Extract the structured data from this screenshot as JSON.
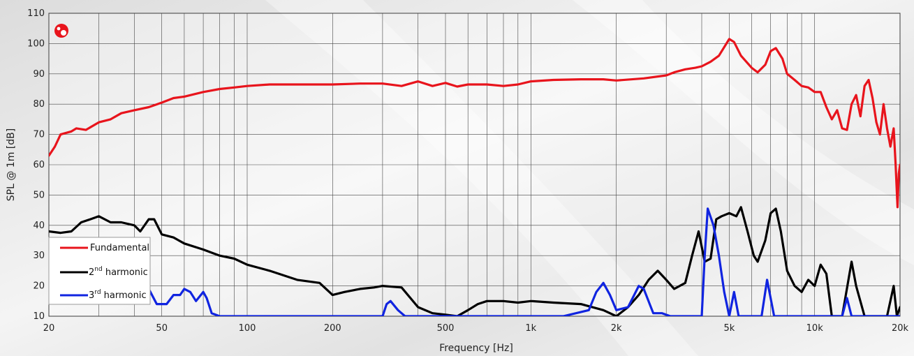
{
  "chart_data": {
    "type": "line",
    "title": "",
    "xlabel": "Frequency [Hz]",
    "ylabel": "SPL @ 1m [dB]",
    "xscale": "log",
    "xlim": [
      20,
      20000
    ],
    "ylim": [
      10,
      110
    ],
    "grid": true,
    "legend_position": "bottom-left",
    "x_ticks": [
      {
        "value": 20,
        "label": "20"
      },
      {
        "value": 50,
        "label": "50"
      },
      {
        "value": 100,
        "label": "100"
      },
      {
        "value": 200,
        "label": "200"
      },
      {
        "value": 500,
        "label": "500"
      },
      {
        "value": 1000,
        "label": "1k"
      },
      {
        "value": 2000,
        "label": "2k"
      },
      {
        "value": 5000,
        "label": "5k"
      },
      {
        "value": 10000,
        "label": "10k"
      },
      {
        "value": 20000,
        "label": "20k"
      }
    ],
    "y_ticks": [
      10,
      20,
      30,
      40,
      50,
      60,
      70,
      80,
      90,
      100,
      110
    ],
    "series": [
      {
        "name": "Fundamental",
        "color": "#e8141c",
        "points": [
          [
            20,
            63
          ],
          [
            21,
            66
          ],
          [
            22,
            70
          ],
          [
            24,
            71
          ],
          [
            25,
            72
          ],
          [
            27,
            71.5
          ],
          [
            30,
            74
          ],
          [
            33,
            75
          ],
          [
            36,
            77
          ],
          [
            40,
            78
          ],
          [
            45,
            79
          ],
          [
            50,
            80.5
          ],
          [
            55,
            82
          ],
          [
            60,
            82.5
          ],
          [
            70,
            84
          ],
          [
            80,
            85
          ],
          [
            90,
            85.5
          ],
          [
            100,
            86
          ],
          [
            120,
            86.5
          ],
          [
            150,
            86.5
          ],
          [
            200,
            86.5
          ],
          [
            250,
            86.8
          ],
          [
            300,
            86.8
          ],
          [
            350,
            86
          ],
          [
            400,
            87.5
          ],
          [
            450,
            86
          ],
          [
            500,
            87
          ],
          [
            550,
            85.8
          ],
          [
            600,
            86.5
          ],
          [
            700,
            86.5
          ],
          [
            800,
            86
          ],
          [
            900,
            86.5
          ],
          [
            1000,
            87.5
          ],
          [
            1200,
            88
          ],
          [
            1500,
            88.2
          ],
          [
            1800,
            88.2
          ],
          [
            2000,
            87.8
          ],
          [
            2500,
            88.5
          ],
          [
            3000,
            89.5
          ],
          [
            3200,
            90.5
          ],
          [
            3500,
            91.5
          ],
          [
            3800,
            92
          ],
          [
            4000,
            92.5
          ],
          [
            4300,
            94
          ],
          [
            4600,
            96
          ],
          [
            5000,
            101.5
          ],
          [
            5200,
            100.5
          ],
          [
            5500,
            96
          ],
          [
            6000,
            92
          ],
          [
            6300,
            90.5
          ],
          [
            6700,
            93
          ],
          [
            7000,
            97.5
          ],
          [
            7300,
            98.5
          ],
          [
            7700,
            95
          ],
          [
            8000,
            90
          ],
          [
            8500,
            88
          ],
          [
            9000,
            86
          ],
          [
            9500,
            85.5
          ],
          [
            10000,
            84
          ],
          [
            10500,
            84
          ],
          [
            11000,
            79
          ],
          [
            11500,
            75
          ],
          [
            12000,
            78
          ],
          [
            12500,
            72
          ],
          [
            13000,
            71.5
          ],
          [
            13500,
            80
          ],
          [
            14000,
            83
          ],
          [
            14500,
            76
          ],
          [
            15000,
            86
          ],
          [
            15500,
            88
          ],
          [
            16000,
            82
          ],
          [
            16500,
            74
          ],
          [
            17000,
            70
          ],
          [
            17500,
            80
          ],
          [
            18000,
            72
          ],
          [
            18500,
            66
          ],
          [
            19000,
            72
          ],
          [
            19300,
            60
          ],
          [
            19600,
            46
          ],
          [
            19800,
            57
          ],
          [
            20000,
            60
          ]
        ]
      },
      {
        "name": "2nd harmonic",
        "color": "#000000",
        "points": [
          [
            20,
            38
          ],
          [
            22,
            37.5
          ],
          [
            24,
            38
          ],
          [
            26,
            41
          ],
          [
            28,
            42
          ],
          [
            30,
            43
          ],
          [
            33,
            41
          ],
          [
            36,
            41
          ],
          [
            40,
            40
          ],
          [
            42,
            38
          ],
          [
            45,
            42
          ],
          [
            47,
            42
          ],
          [
            50,
            37
          ],
          [
            55,
            36
          ],
          [
            60,
            34
          ],
          [
            70,
            32
          ],
          [
            80,
            30
          ],
          [
            90,
            29
          ],
          [
            100,
            27
          ],
          [
            120,
            25
          ],
          [
            150,
            22
          ],
          [
            180,
            21
          ],
          [
            200,
            17
          ],
          [
            220,
            18
          ],
          [
            250,
            19
          ],
          [
            280,
            19.5
          ],
          [
            300,
            20
          ],
          [
            350,
            19.5
          ],
          [
            400,
            13
          ],
          [
            450,
            11
          ],
          [
            500,
            10.5
          ],
          [
            550,
            10
          ],
          [
            600,
            12
          ],
          [
            650,
            14
          ],
          [
            700,
            15
          ],
          [
            800,
            15
          ],
          [
            900,
            14.5
          ],
          [
            1000,
            15
          ],
          [
            1200,
            14.5
          ],
          [
            1500,
            14
          ],
          [
            1800,
            12
          ],
          [
            2000,
            10
          ],
          [
            2200,
            13
          ],
          [
            2400,
            17
          ],
          [
            2600,
            22
          ],
          [
            2800,
            25
          ],
          [
            3000,
            22
          ],
          [
            3200,
            19
          ],
          [
            3500,
            21
          ],
          [
            3700,
            30
          ],
          [
            3900,
            38
          ],
          [
            4100,
            28
          ],
          [
            4300,
            29
          ],
          [
            4500,
            42
          ],
          [
            4700,
            43
          ],
          [
            5000,
            44
          ],
          [
            5300,
            43
          ],
          [
            5500,
            46
          ],
          [
            5800,
            38
          ],
          [
            6100,
            30
          ],
          [
            6300,
            28
          ],
          [
            6700,
            35
          ],
          [
            7000,
            44
          ],
          [
            7300,
            45.5
          ],
          [
            7600,
            38
          ],
          [
            8000,
            25
          ],
          [
            8500,
            20
          ],
          [
            9000,
            18
          ],
          [
            9500,
            22
          ],
          [
            10000,
            20
          ],
          [
            10500,
            27
          ],
          [
            11000,
            24
          ],
          [
            11500,
            10
          ],
          [
            12500,
            10
          ],
          [
            13500,
            28
          ],
          [
            14000,
            20
          ],
          [
            15000,
            10
          ],
          [
            18000,
            10
          ],
          [
            19000,
            20
          ],
          [
            19500,
            10
          ],
          [
            20000,
            13
          ]
        ]
      },
      {
        "name": "3rd harmonic",
        "color": "#1024e0",
        "points": [
          [
            20,
            27
          ],
          [
            22,
            25
          ],
          [
            25,
            21
          ],
          [
            28,
            20
          ],
          [
            30,
            19
          ],
          [
            33,
            19
          ],
          [
            36,
            20
          ],
          [
            40,
            21
          ],
          [
            43,
            21
          ],
          [
            45,
            19
          ],
          [
            48,
            14
          ],
          [
            52,
            14
          ],
          [
            55,
            17
          ],
          [
            58,
            17
          ],
          [
            60,
            19
          ],
          [
            63,
            18
          ],
          [
            66,
            15
          ],
          [
            70,
            18
          ],
          [
            72,
            16
          ],
          [
            75,
            11
          ],
          [
            80,
            10
          ],
          [
            90,
            10
          ],
          [
            300,
            10
          ],
          [
            310,
            14
          ],
          [
            320,
            15
          ],
          [
            340,
            12
          ],
          [
            360,
            10
          ],
          [
            1300,
            10
          ],
          [
            1600,
            12
          ],
          [
            1700,
            18
          ],
          [
            1800,
            21
          ],
          [
            1900,
            17
          ],
          [
            2000,
            12
          ],
          [
            2200,
            13
          ],
          [
            2400,
            20
          ],
          [
            2500,
            19
          ],
          [
            2700,
            11
          ],
          [
            2900,
            11
          ],
          [
            3100,
            10
          ],
          [
            4000,
            10
          ],
          [
            4100,
            30
          ],
          [
            4200,
            45.5
          ],
          [
            4400,
            40
          ],
          [
            4600,
            30
          ],
          [
            4800,
            18
          ],
          [
            5000,
            10
          ],
          [
            5200,
            18
          ],
          [
            5400,
            10
          ],
          [
            6500,
            10
          ],
          [
            6800,
            22
          ],
          [
            7200,
            10
          ],
          [
            12500,
            10
          ],
          [
            13000,
            16
          ],
          [
            13500,
            10
          ],
          [
            20000,
            10
          ]
        ]
      }
    ],
    "legend": [
      {
        "label_main": "Fundamental",
        "label_sup": "",
        "label_rest": "",
        "color": "#e8141c"
      },
      {
        "label_main": "2",
        "label_sup": "nd",
        "label_rest": " harmonic",
        "color": "#000000"
      },
      {
        "label_main": "3",
        "label_sup": "rd",
        "label_rest": " harmonic",
        "color": "#1024e0"
      }
    ]
  },
  "logo": {
    "icon": "brand-logo-icon",
    "color": "#e8141c"
  }
}
